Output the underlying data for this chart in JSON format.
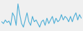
{
  "values": [
    2.0,
    1.5,
    2.5,
    1.8,
    2.2,
    1.0,
    4.5,
    3.5,
    1.0,
    7.0,
    4.0,
    1.5,
    0.5,
    2.5,
    4.5,
    2.0,
    1.0,
    3.5,
    2.0,
    2.5,
    1.5,
    0.5,
    2.0,
    2.5,
    1.0,
    3.0,
    1.5,
    2.5,
    3.5,
    1.5,
    3.0,
    2.0,
    2.5,
    4.0,
    2.5,
    3.5,
    3.0,
    2.0,
    3.5,
    2.0,
    3.5,
    4.5,
    2.5,
    4.0,
    3.0
  ],
  "line_color": "#4aadd6",
  "background_color": "#f0f0f0",
  "linewidth": 0.8
}
